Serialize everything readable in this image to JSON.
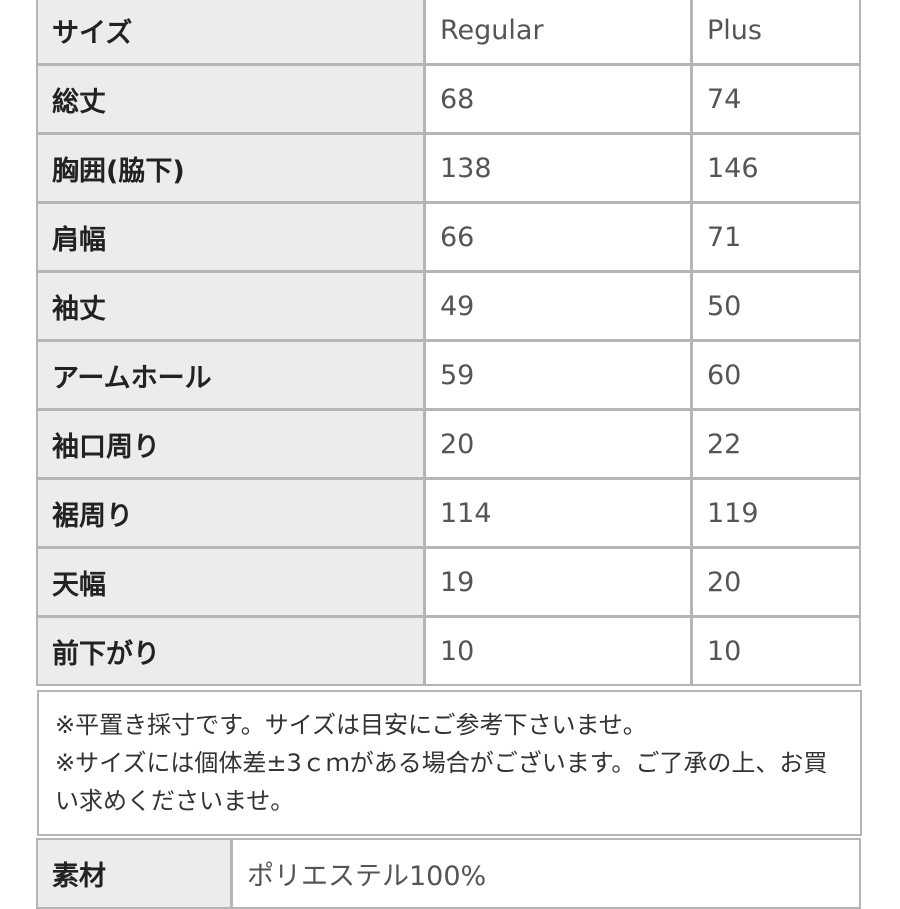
{
  "table": {
    "header": [
      "サイズ",
      "Regular",
      "Plus"
    ],
    "rows": [
      [
        "総丈",
        "68",
        "74"
      ],
      [
        "胸囲(脇下)",
        "138",
        "146"
      ],
      [
        "肩幅",
        "66",
        "71"
      ],
      [
        "袖丈",
        "49",
        "50"
      ],
      [
        "アームホール",
        "59",
        "60"
      ],
      [
        "袖口周り",
        "20",
        "22"
      ],
      [
        "裾周り",
        "114",
        "119"
      ],
      [
        "天幅",
        "19",
        "20"
      ],
      [
        "前下がり",
        "10",
        "10"
      ]
    ]
  },
  "notes": {
    "line1": "※平置き採寸です。サイズは目安にご参考下さいませ。",
    "line2": "※サイズには個体差±3ｃｍがある場合がございます。ご了承の上、お買い求めくださいませ。"
  },
  "material": {
    "label": "素材",
    "value": "ポリエステル100%"
  }
}
